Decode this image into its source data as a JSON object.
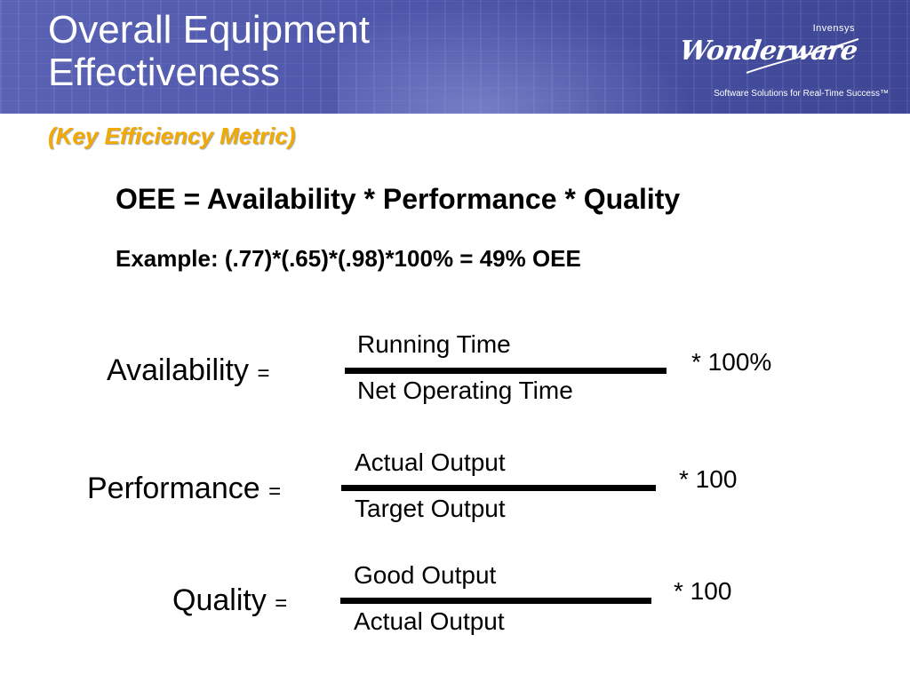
{
  "header": {
    "title": "Overall Equipment Effectiveness",
    "subtitle": "(Key Efficiency Metric)",
    "logo": {
      "company": "Invensys",
      "brand": "Wonderware",
      "tagline": "Software Solutions for Real-Time Success™"
    }
  },
  "content": {
    "formula": "OEE = Availability * Performance * Quality",
    "example": "Example: (.77)*(.65)*(.98)*100% = 49% OEE"
  },
  "metrics": [
    {
      "name": "Availability",
      "eq": "=",
      "numerator": "Running Time",
      "denominator": "Net Operating Time",
      "multiplier": "* 100%"
    },
    {
      "name": "Performance",
      "eq": "=",
      "numerator": "Actual Output",
      "denominator": "Target Output",
      "multiplier": "* 100"
    },
    {
      "name": "Quality",
      "eq": "=",
      "numerator": "Good Output",
      "denominator": "Actual Output",
      "multiplier": "* 100"
    }
  ],
  "colors": {
    "banner": "#4d56aa",
    "subtitle": "#f2a900",
    "text": "#000000"
  }
}
